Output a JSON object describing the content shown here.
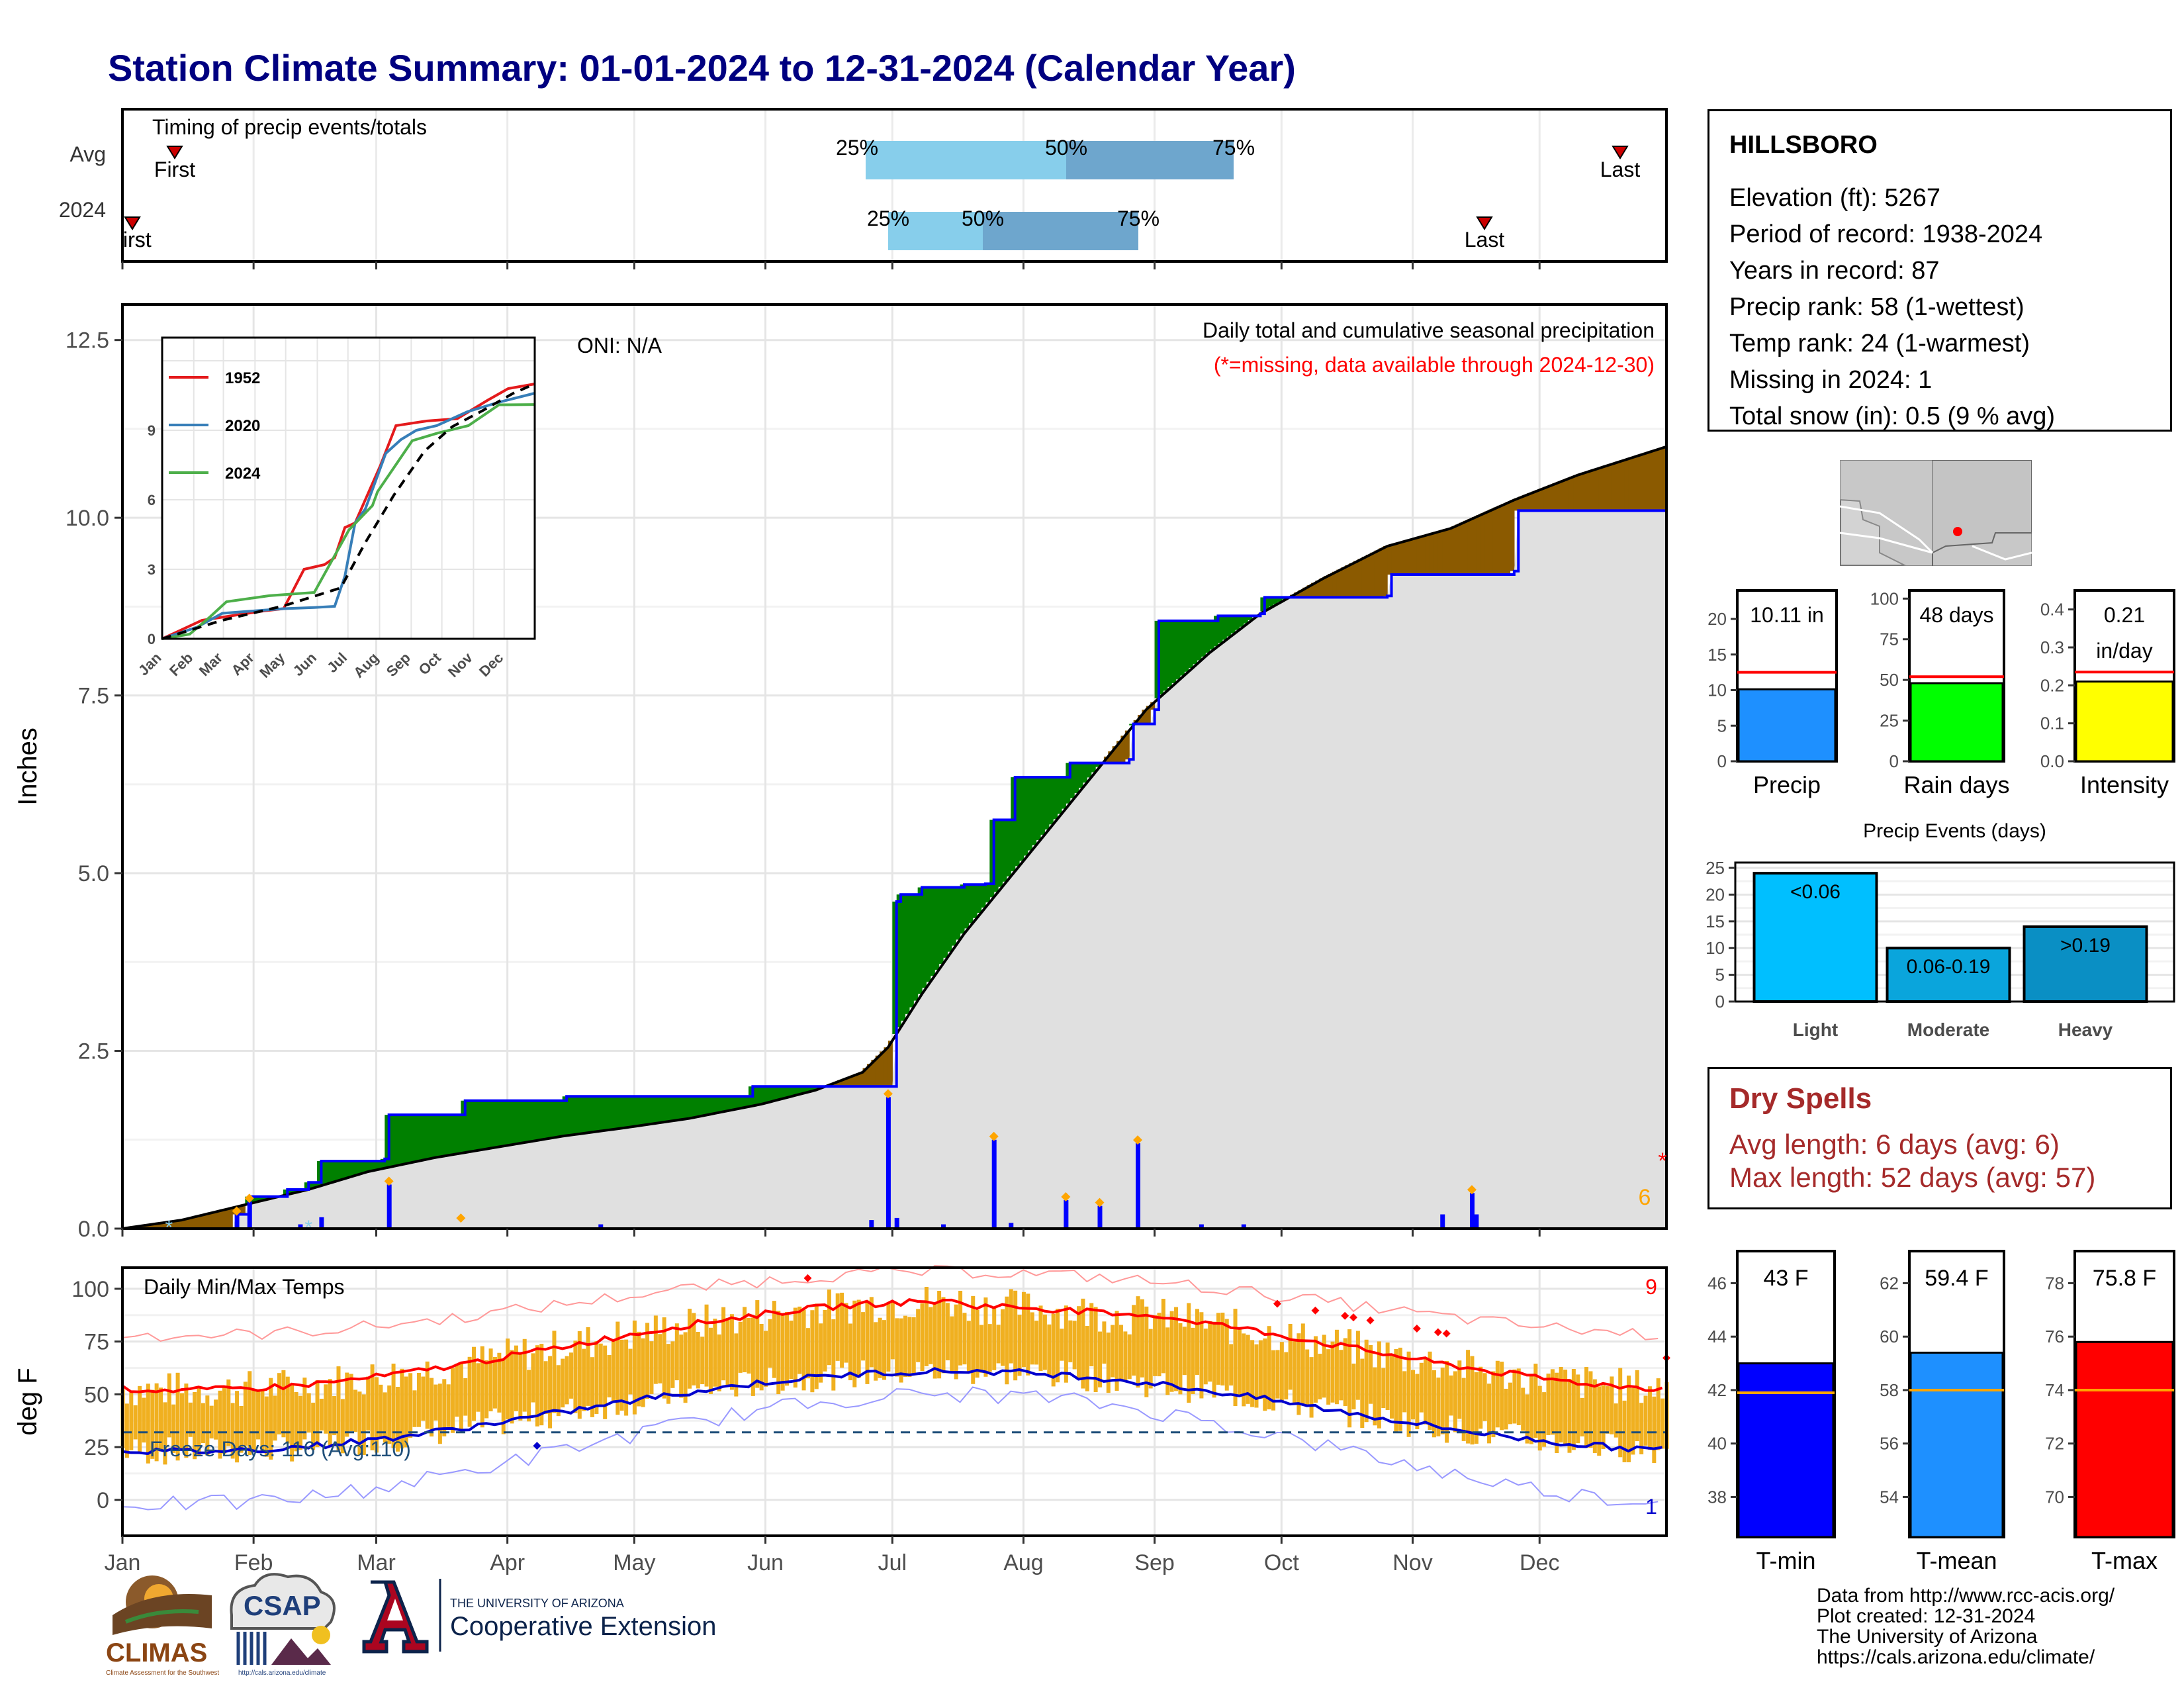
{
  "title": "Station Climate Summary: 01-01-2024 to 12-31-2024 (Calendar Year)",
  "colors": {
    "precip_cum_2024": "#0000ff",
    "cum_avg": "#000000",
    "above_avg": "#008000",
    "below_avg": "#8b5a00",
    "gray_fill": "#e0e0e0",
    "temp_bar": "#f0b020",
    "tmax_avg": "#ff0000",
    "tmin_avg": "#0000cd",
    "freeze_line": "#1f4e79"
  },
  "timing": {
    "title": "Timing of precip events/totals",
    "rows": [
      "Avg",
      "2024"
    ],
    "avg": {
      "first_label": "First",
      "last_label": "Last",
      "p25": "25%",
      "p50": "50%",
      "p75": "75%"
    },
    "y2024": {
      "first_label": "First",
      "last_label": "Last",
      "p25": "25%",
      "p50": "50%",
      "p75": "75%"
    }
  },
  "station": {
    "name": "HILLSBORO",
    "lines": [
      "Elevation (ft): 5267",
      "Period of record: 1938-2024",
      "Years in record: 87",
      "Precip rank: 58 (1-wettest)",
      "Temp rank: 24 (1-warmest)",
      "Missing in 2024: 1",
      "Total snow (in): 0.5 (9 % avg)"
    ]
  },
  "chart_data": [
    {
      "type": "area",
      "id": "precip-main",
      "title": "Daily total and cumulative seasonal precipitation",
      "subtitle": "(*=missing, data available through 2024-12-30)",
      "annotation": "ONI: N/A",
      "ylabel": "Inches",
      "ylim": [
        0,
        13
      ],
      "yticks": [
        "0.0",
        "2.5",
        "5.0",
        "7.5",
        "10.0",
        "12.5"
      ],
      "missing_count": "6",
      "missing_marker": "*",
      "cumulative_2024": [
        [
          1,
          0
        ],
        [
          28,
          0.2
        ],
        [
          31,
          0.45
        ],
        [
          40,
          0.55
        ],
        [
          45,
          0.65
        ],
        [
          48,
          0.95
        ],
        [
          63,
          0.98
        ],
        [
          64,
          1.6
        ],
        [
          81,
          1.6
        ],
        [
          82,
          1.8
        ],
        [
          106,
          1.86
        ],
        [
          125,
          1.86
        ],
        [
          150,
          2.0
        ],
        [
          170,
          2.0
        ],
        [
          183,
          2.0
        ],
        [
          184,
          4.6
        ],
        [
          185,
          4.7
        ],
        [
          190,
          4.8
        ],
        [
          200,
          4.84
        ],
        [
          205,
          4.85
        ],
        [
          207,
          5.75
        ],
        [
          212,
          6.35
        ],
        [
          225,
          6.55
        ],
        [
          239,
          6.6
        ],
        [
          240,
          7.1
        ],
        [
          245,
          7.3
        ],
        [
          246,
          8.55
        ],
        [
          260,
          8.62
        ],
        [
          270,
          8.65
        ],
        [
          271,
          8.88
        ],
        [
          300,
          8.9
        ],
        [
          301,
          9.2
        ],
        [
          330,
          9.25
        ],
        [
          331,
          10.1
        ],
        [
          366,
          10.11
        ]
      ],
      "cumulative_avg": [
        [
          1,
          0
        ],
        [
          15,
          0.12
        ],
        [
          31,
          0.35
        ],
        [
          45,
          0.55
        ],
        [
          59,
          0.8
        ],
        [
          75,
          1.0
        ],
        [
          90,
          1.15
        ],
        [
          105,
          1.3
        ],
        [
          120,
          1.42
        ],
        [
          135,
          1.55
        ],
        [
          152,
          1.75
        ],
        [
          165,
          1.95
        ],
        [
          176,
          2.2
        ],
        [
          182,
          2.55
        ],
        [
          190,
          3.3
        ],
        [
          200,
          4.15
        ],
        [
          213,
          5.1
        ],
        [
          228,
          6.2
        ],
        [
          243,
          7.3
        ],
        [
          258,
          8.1
        ],
        [
          270,
          8.65
        ],
        [
          285,
          9.15
        ],
        [
          300,
          9.6
        ],
        [
          315,
          9.85
        ],
        [
          330,
          10.25
        ],
        [
          345,
          10.6
        ],
        [
          366,
          11.0
        ]
      ],
      "daily_2024": [
        [
          28,
          0.2
        ],
        [
          31,
          0.38
        ],
        [
          43,
          0.06
        ],
        [
          48,
          0.16
        ],
        [
          64,
          0.62
        ],
        [
          114,
          0.06
        ],
        [
          195,
          0.06
        ],
        [
          178,
          0.12
        ],
        [
          182,
          1.85
        ],
        [
          184,
          0.15
        ],
        [
          207,
          1.25
        ],
        [
          211,
          0.08
        ],
        [
          224,
          0.4
        ],
        [
          232,
          0.32
        ],
        [
          241,
          1.2
        ],
        [
          256,
          0.06
        ],
        [
          266,
          0.06
        ],
        [
          313,
          0.2
        ],
        [
          320,
          0.5
        ],
        [
          321,
          0.2
        ]
      ],
      "months": [
        "Jan",
        "Feb",
        "Mar",
        "Apr",
        "May",
        "Jun",
        "Jul",
        "Aug",
        "Sep",
        "Oct",
        "Nov",
        "Dec"
      ]
    },
    {
      "type": "line",
      "id": "inset",
      "ylim": [
        0,
        13
      ],
      "yticks": [
        "0",
        "3",
        "6",
        "9"
      ],
      "months": [
        "Jan",
        "Feb",
        "Mar",
        "Apr",
        "May",
        "Jun",
        "Jul",
        "Aug",
        "Sep",
        "Oct",
        "Nov",
        "Dec"
      ],
      "series": [
        {
          "name": "1952",
          "color": "#e41a1c",
          "points": [
            [
              1,
              0
            ],
            [
              40,
              0.8
            ],
            [
              70,
              1.0
            ],
            [
              100,
              1.2
            ],
            [
              120,
              1.3
            ],
            [
              140,
              3.0
            ],
            [
              160,
              3.2
            ],
            [
              170,
              3.5
            ],
            [
              180,
              4.8
            ],
            [
              190,
              5.0
            ],
            [
              200,
              6.0
            ],
            [
              215,
              7.5
            ],
            [
              230,
              9.2
            ],
            [
              260,
              9.4
            ],
            [
              290,
              9.5
            ],
            [
              320,
              10.3
            ],
            [
              340,
              10.8
            ],
            [
              366,
              11.0
            ]
          ]
        },
        {
          "name": "2020",
          "color": "#377eb8",
          "points": [
            [
              1,
              0
            ],
            [
              35,
              0.5
            ],
            [
              60,
              1.1
            ],
            [
              90,
              1.2
            ],
            [
              120,
              1.3
            ],
            [
              150,
              1.35
            ],
            [
              170,
              1.4
            ],
            [
              180,
              2.7
            ],
            [
              190,
              5.0
            ],
            [
              200,
              5.6
            ],
            [
              220,
              8.0
            ],
            [
              235,
              8.6
            ],
            [
              250,
              9.0
            ],
            [
              270,
              9.2
            ],
            [
              300,
              9.8
            ],
            [
              330,
              10.2
            ],
            [
              366,
              10.6
            ]
          ]
        },
        {
          "name": "2024",
          "color": "#4daf4a",
          "points": [
            [
              1,
              0
            ],
            [
              28,
              0.2
            ],
            [
              48,
              0.95
            ],
            [
              64,
              1.6
            ],
            [
              106,
              1.86
            ],
            [
              150,
              2.0
            ],
            [
              184,
              4.7
            ],
            [
              207,
              5.75
            ],
            [
              212,
              6.35
            ],
            [
              246,
              8.55
            ],
            [
              271,
              8.88
            ],
            [
              301,
              9.2
            ],
            [
              331,
              10.1
            ],
            [
              366,
              10.11
            ]
          ]
        },
        {
          "name": "",
          "color": "#000000",
          "dashed": true,
          "points": [
            [
              1,
              0
            ],
            [
              60,
              0.8
            ],
            [
              120,
              1.42
            ],
            [
              176,
              2.2
            ],
            [
              200,
              4.15
            ],
            [
              228,
              6.2
            ],
            [
              258,
              8.1
            ],
            [
              285,
              9.15
            ],
            [
              315,
              9.85
            ],
            [
              345,
              10.6
            ],
            [
              366,
              11.0
            ]
          ]
        }
      ]
    },
    {
      "type": "line",
      "id": "temps",
      "title": "Daily Min/Max Temps",
      "ylabel": "deg F",
      "ylim": [
        -17,
        110
      ],
      "yticks": [
        "0",
        "25",
        "50",
        "75",
        "100"
      ],
      "freeze_label": "Freeze Days: 116 (Avg:110)",
      "freeze_temp": 32,
      "record_high_count": "9",
      "record_low_count": "1",
      "months": [
        "Jan",
        "Feb",
        "Mar",
        "Apr",
        "May",
        "Jun",
        "Jul",
        "Aug",
        "Sep",
        "Oct",
        "Nov",
        "Dec"
      ]
    },
    {
      "type": "bar",
      "id": "bar-precip",
      "categories": [
        "Precip"
      ],
      "values": [
        10.11
      ],
      "avg": 12.5,
      "label": "10.11 in",
      "ylim": [
        0,
        24
      ],
      "yticks": [
        "0",
        "5",
        "10",
        "15",
        "20"
      ],
      "color": "#1e90ff"
    },
    {
      "type": "bar",
      "id": "bar-raindays",
      "categories": [
        "Rain days"
      ],
      "values": [
        48
      ],
      "avg": 52,
      "label": "48 days",
      "ylim": [
        0,
        105
      ],
      "yticks": [
        "0",
        "25",
        "50",
        "75",
        "100"
      ],
      "color": "#00ff00"
    },
    {
      "type": "bar",
      "id": "bar-intensity",
      "categories": [
        "Intensity"
      ],
      "values": [
        0.21
      ],
      "avg": 0.235,
      "label": "0.21",
      "label2": "in/day",
      "ylim": [
        0,
        0.45
      ],
      "yticks": [
        "0.0",
        "0.1",
        "0.2",
        "0.3",
        "0.4"
      ],
      "color": "#ffff00"
    },
    {
      "type": "bar",
      "id": "bar-events",
      "title": "Precip Events (days)",
      "categories": [
        "Light",
        "Moderate",
        "Heavy"
      ],
      "labels": [
        "<0.06",
        "0.06-0.19",
        ">0.19"
      ],
      "values": [
        24,
        10,
        14
      ],
      "ylim": [
        0,
        26
      ],
      "yticks": [
        "0",
        "5",
        "10",
        "15",
        "20",
        "25"
      ],
      "colors": [
        "#00bfff",
        "#0aa5dc",
        "#0a8fc4"
      ]
    },
    {
      "type": "bar",
      "id": "bar-tmin",
      "categories": [
        "T-min"
      ],
      "values": [
        43
      ],
      "avg": 41.9,
      "label": "43 F",
      "ylim": [
        36.5,
        47.2
      ],
      "yticks": [
        "38",
        "40",
        "42",
        "44",
        "46"
      ],
      "color": "#0000ff"
    },
    {
      "type": "bar",
      "id": "bar-tmean",
      "categories": [
        "T-mean"
      ],
      "values": [
        59.4
      ],
      "avg": 58.0,
      "label": "59.4 F",
      "ylim": [
        52.5,
        63.2
      ],
      "yticks": [
        "54",
        "56",
        "58",
        "60",
        "62"
      ],
      "color": "#1e90ff"
    },
    {
      "type": "bar",
      "id": "bar-tmax",
      "categories": [
        "T-max"
      ],
      "values": [
        75.8
      ],
      "avg": 74.0,
      "label": "75.8 F",
      "ylim": [
        68.5,
        79.2
      ],
      "yticks": [
        "70",
        "72",
        "74",
        "76",
        "78"
      ],
      "color": "#ff0000"
    }
  ],
  "dry_spells": {
    "title": "Dry Spells",
    "avg_length": "Avg length: 6 days (avg: 6)",
    "max_length": "Max length: 52 days (avg: 57)"
  },
  "logos": {
    "climas": "CLIMAS",
    "climas_sub": "Climate Assessment for the Southwest",
    "csap": "CSAP",
    "csap_url": "http://cals.arizona.edu/climate",
    "ua_small": "THE UNIVERSITY OF ARIZONA",
    "ua_big": "Cooperative Extension"
  },
  "footer": [
    "Data from http://www.rcc-acis.org/",
    "Plot created: 12-31-2024",
    "The University of Arizona",
    "https://cals.arizona.edu/climate/"
  ]
}
